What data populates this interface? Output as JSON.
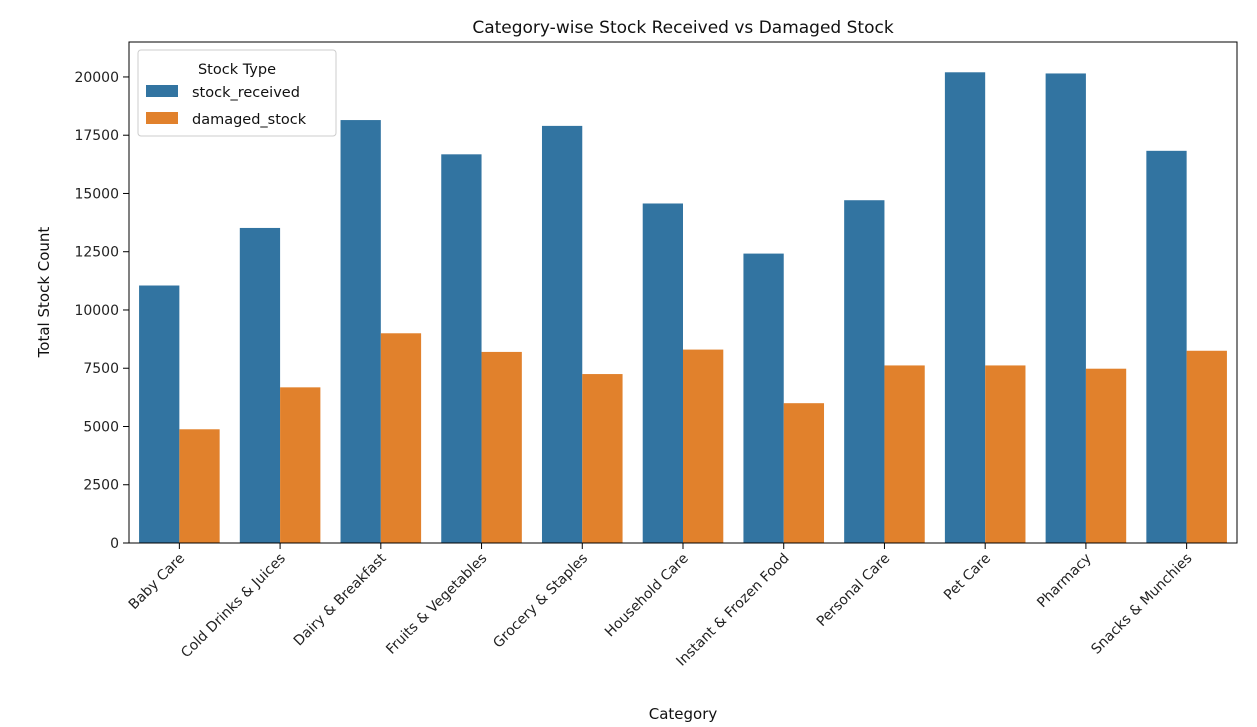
{
  "chart_data": {
    "type": "bar",
    "title": "Category-wise Stock Received vs Damaged Stock",
    "xlabel": "Category",
    "ylabel": "Total Stock Count",
    "ylim": [
      0,
      21500
    ],
    "yticks": [
      0,
      2500,
      5000,
      7500,
      10000,
      12500,
      15000,
      17500,
      20000
    ],
    "categories": [
      "Baby Care",
      "Cold Drinks & Juices",
      "Dairy & Breakfast",
      "Fruits & Vegetables",
      "Grocery & Staples",
      "Household Care",
      "Instant & Frozen Food",
      "Personal Care",
      "Pet Care",
      "Pharmacy",
      "Snacks & Munchies"
    ],
    "series": [
      {
        "name": "stock_received",
        "color": "#3274a1",
        "values": [
          11050,
          13520,
          18150,
          16680,
          17900,
          14570,
          12420,
          14710,
          20200,
          20150,
          16830
        ]
      },
      {
        "name": "damaged_stock",
        "color": "#e1812c",
        "values": [
          4880,
          6680,
          9000,
          8200,
          7250,
          8300,
          6000,
          7620,
          7620,
          7480,
          8250
        ]
      }
    ],
    "legend": {
      "title": "Stock Type",
      "placement": "top-left"
    },
    "grid": false
  }
}
